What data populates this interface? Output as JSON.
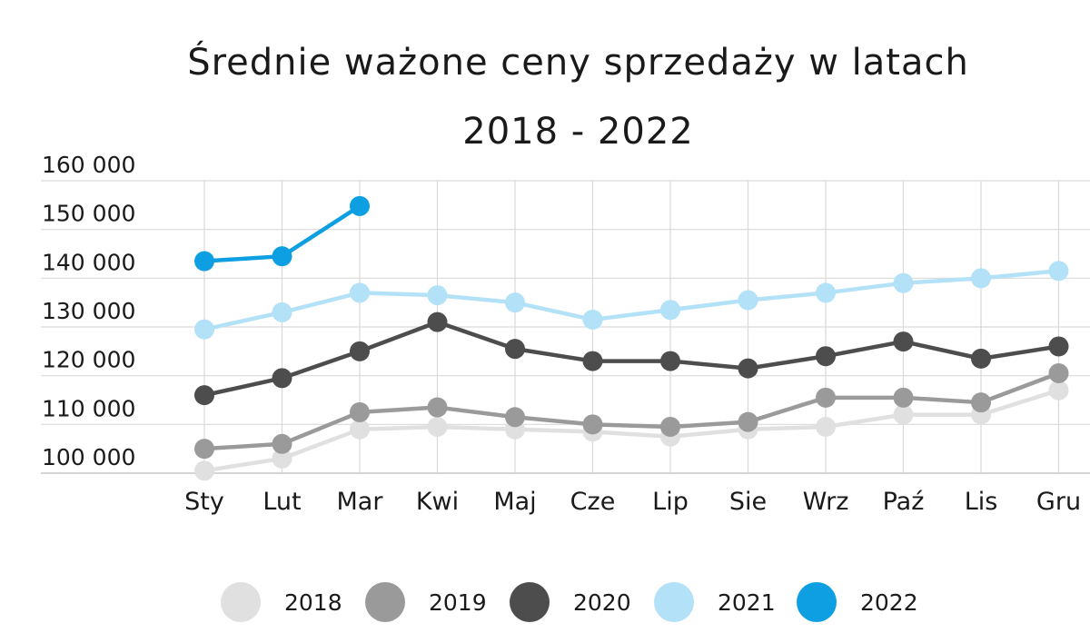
{
  "chart_data": {
    "type": "line",
    "title": "Średnie ważone ceny sprzedaży w latach",
    "subtitle": "2018 - 2022",
    "categories": [
      "Sty",
      "Lut",
      "Mar",
      "Kwi",
      "Maj",
      "Cze",
      "Lip",
      "Sie",
      "Wrz",
      "Paź",
      "Lis",
      "Gru"
    ],
    "y_ticks": [
      "100 000",
      "110 000",
      "120 000",
      "130 000",
      "140 000",
      "150 000",
      "160 000"
    ],
    "ylim": [
      97000,
      160000
    ],
    "grid": true,
    "legend_position": "bottom",
    "series": [
      {
        "name": "2018",
        "color": "#e0e0e0",
        "values": [
          100500,
          103000,
          109000,
          109500,
          109000,
          108500,
          107500,
          109000,
          109500,
          112000,
          112000,
          117000
        ]
      },
      {
        "name": "2019",
        "color": "#9a9a9a",
        "values": [
          105000,
          106000,
          112500,
          113500,
          111500,
          110000,
          109500,
          110500,
          115500,
          115500,
          114500,
          120500
        ]
      },
      {
        "name": "2020",
        "color": "#4d4d4d",
        "values": [
          116000,
          119500,
          125000,
          131000,
          125500,
          123000,
          123000,
          121500,
          124000,
          127000,
          123500,
          126000
        ]
      },
      {
        "name": "2021",
        "color": "#b3e1f7",
        "values": [
          129500,
          133000,
          137000,
          136500,
          135000,
          131500,
          133500,
          135500,
          137000,
          139000,
          140000,
          141500
        ]
      },
      {
        "name": "2022",
        "color": "#0e9fe3",
        "values": [
          143500,
          144500,
          154800,
          null,
          null,
          null,
          null,
          null,
          null,
          null,
          null,
          null
        ]
      }
    ]
  }
}
